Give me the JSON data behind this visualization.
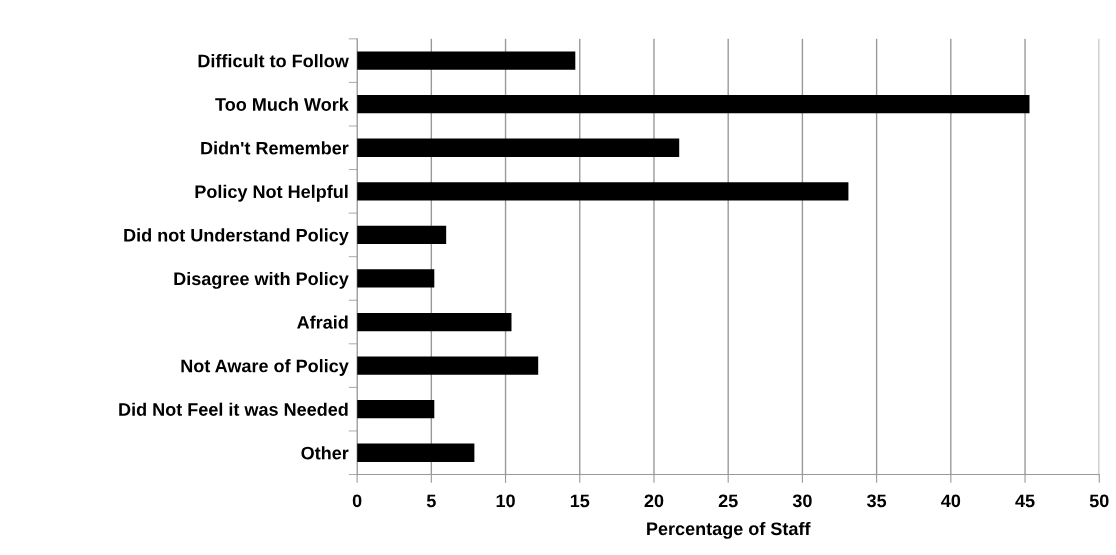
{
  "chart_data": {
    "type": "bar",
    "orientation": "horizontal",
    "xlabel": "Percentage of Staff",
    "categories": [
      "Difficult to Follow",
      "Too Much Work",
      "Didn't Remember",
      "Policy Not Helpful",
      "Did not Understand Policy",
      "Disagree with Policy",
      "Afraid",
      "Not Aware of Policy",
      "Did Not Feel it was Needed",
      "Other"
    ],
    "values": [
      14.7,
      45.3,
      21.7,
      33.1,
      6.0,
      5.2,
      10.4,
      12.2,
      5.2,
      7.9
    ],
    "color": "#000000",
    "xlim": [
      0,
      50
    ],
    "xticks": [
      0,
      5,
      10,
      15,
      20,
      25,
      30,
      35,
      40,
      45,
      50
    ],
    "grid": "x"
  }
}
